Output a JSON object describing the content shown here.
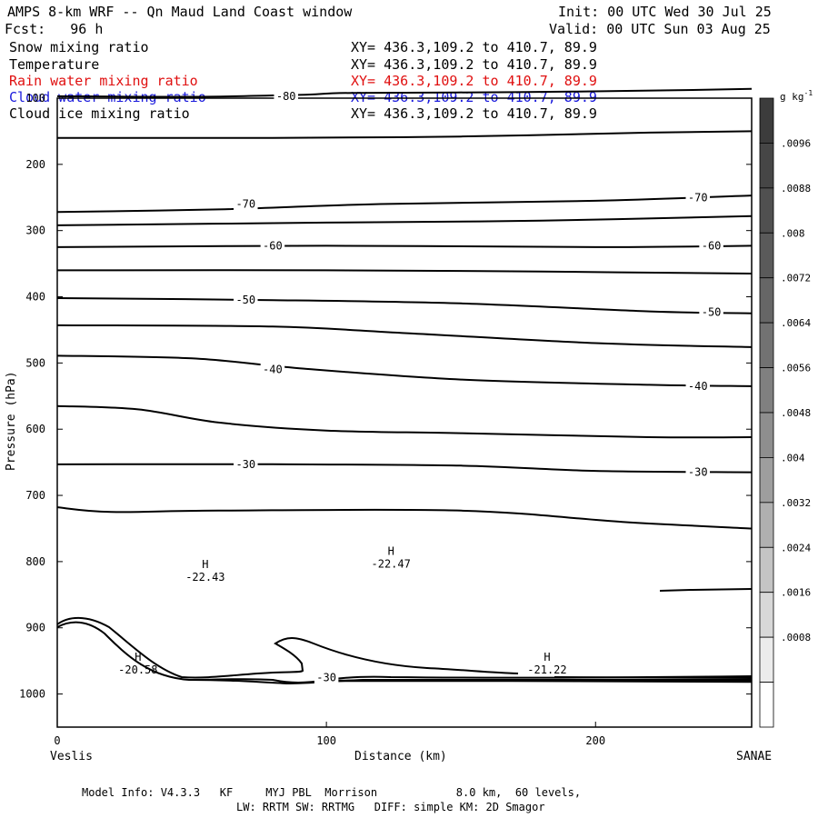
{
  "header": {
    "title": "AMPS 8-km WRF -- Qn Maud Land Coast window",
    "init": "Init: 00 UTC Wed 30 Jul 25",
    "fcst": "Fcst:   96 h",
    "valid": "Valid: 00 UTC Sun 03 Aug 25"
  },
  "legend": [
    {
      "name": "Snow mixing ratio",
      "xy": "XY= 436.3,109.2 to 410.7, 89.9",
      "color": "#000000"
    },
    {
      "name": "Temperature",
      "xy": "XY= 436.3,109.2 to 410.7, 89.9",
      "color": "#000000"
    },
    {
      "name": "Rain water mixing ratio",
      "xy": "XY= 436.3,109.2 to 410.7, 89.9",
      "color": "#e01010"
    },
    {
      "name": "Cloud water mixing ratio",
      "xy": "XY= 436.3,109.2 to 410.7, 89.9",
      "color": "#1a1adc"
    },
    {
      "name": "Cloud ice mixing ratio",
      "xy": "XY= 436.3,109.2 to 410.7, 89.9",
      "color": "#000000"
    }
  ],
  "footer": {
    "line1": "Model Info: V4.3.3   KF     MYJ PBL  Morrison            8.0 km,  60 levels,",
    "line2": "LW: RRTM SW: RRTMG   DIFF: simple KM: 2D Smagor"
  },
  "chart_data": {
    "type": "line",
    "xlabel": "Distance (km)",
    "ylabel": "Pressure (hPa)",
    "xlim": [
      0,
      258
    ],
    "ylim": [
      1050,
      100
    ],
    "x_ticks": [
      0,
      100,
      200
    ],
    "y_ticks": [
      200,
      300,
      400,
      500,
      600,
      700,
      800,
      900,
      1000
    ],
    "y_tick_top": "100",
    "x_end_labels": {
      "left": "Veslis",
      "right": "SANAE"
    },
    "colorbar": {
      "unit": "g kg",
      "unit_sup": "-1",
      "ticks": [
        ".0096",
        ".0088",
        ".008",
        ".0072",
        ".0064",
        ".0056",
        ".0048",
        ".004",
        ".0032",
        ".0024",
        ".0016",
        ".0008"
      ],
      "colors": [
        "#3c3c3c",
        "#464646",
        "#505050",
        "#5a5a5a",
        "#666666",
        "#727272",
        "#808080",
        "#8e8e8e",
        "#9e9e9e",
        "#b0b0b0",
        "#c4c4c4",
        "#d8d8d8",
        "#ececec",
        "#ffffff"
      ]
    },
    "isotherms": [
      {
        "points": [
          [
            0,
            97
          ],
          [
            50,
            98
          ],
          [
            90,
            95
          ],
          [
            110,
            92
          ],
          [
            170,
            91
          ],
          [
            230,
            88
          ],
          [
            258,
            86
          ]
        ]
      },
      {
        "points": [
          [
            0,
            160
          ],
          [
            80,
            160
          ],
          [
            150,
            158
          ],
          [
            220,
            152
          ],
          [
            258,
            150
          ]
        ]
      },
      {
        "points": [
          [
            0,
            272
          ],
          [
            60,
            268
          ],
          [
            120,
            260
          ],
          [
            200,
            255
          ],
          [
            258,
            247
          ]
        ]
      },
      {
        "points": [
          [
            0,
            292
          ],
          [
            100,
            288
          ],
          [
            180,
            285
          ],
          [
            258,
            278
          ]
        ]
      },
      {
        "points": [
          [
            0,
            325
          ],
          [
            100,
            323
          ],
          [
            200,
            325
          ],
          [
            258,
            323
          ]
        ]
      },
      {
        "points": [
          [
            0,
            360
          ],
          [
            100,
            360
          ],
          [
            180,
            362
          ],
          [
            258,
            365
          ]
        ]
      },
      {
        "points": [
          [
            0,
            402
          ],
          [
            80,
            405
          ],
          [
            150,
            410
          ],
          [
            220,
            422
          ],
          [
            258,
            425
          ]
        ]
      },
      {
        "points": [
          [
            0,
            443
          ],
          [
            80,
            445
          ],
          [
            130,
            455
          ],
          [
            200,
            470
          ],
          [
            258,
            476
          ]
        ]
      },
      {
        "points": [
          [
            0,
            489
          ],
          [
            50,
            493
          ],
          [
            90,
            508
          ],
          [
            150,
            525
          ],
          [
            220,
            533
          ],
          [
            258,
            535
          ]
        ]
      },
      {
        "points": [
          [
            0,
            565
          ],
          [
            30,
            570
          ],
          [
            60,
            590
          ],
          [
            100,
            602
          ],
          [
            150,
            606
          ],
          [
            220,
            612
          ],
          [
            258,
            612
          ]
        ]
      },
      {
        "points": [
          [
            0,
            653
          ],
          [
            80,
            653
          ],
          [
            150,
            655
          ],
          [
            200,
            663
          ],
          [
            258,
            665
          ]
        ]
      },
      {
        "points": [
          [
            0,
            718
          ],
          [
            20,
            725
          ],
          [
            60,
            723
          ],
          [
            150,
            723
          ],
          [
            210,
            740
          ],
          [
            258,
            750
          ]
        ]
      }
    ],
    "contour_labels": [
      {
        "text": "-80",
        "x": 85,
        "p": 97
      },
      {
        "text": "-70",
        "x": 70,
        "p": 260
      },
      {
        "text": "-70",
        "x": 238,
        "p": 250
      },
      {
        "text": "-60",
        "x": 80,
        "p": 323
      },
      {
        "text": "-60",
        "x": 243,
        "p": 323
      },
      {
        "text": "-50",
        "x": 70,
        "p": 405
      },
      {
        "text": "-50",
        "x": 243,
        "p": 423
      },
      {
        "text": "-40",
        "x": 80,
        "p": 510
      },
      {
        "text": "-40",
        "x": 238,
        "p": 535
      },
      {
        "text": "-30",
        "x": 70,
        "p": 653
      },
      {
        "text": "-30",
        "x": 238,
        "p": 665
      },
      {
        "text": "-30",
        "x": 100,
        "p": 975
      }
    ],
    "extrema": [
      {
        "symbol": "H",
        "value": "-22.43",
        "x": 55,
        "p": 810
      },
      {
        "symbol": "H",
        "value": "-22.47",
        "x": 124,
        "p": 790
      },
      {
        "symbol": "H",
        "value": "-20.58",
        "x": 30,
        "p": 950
      },
      {
        "symbol": "H",
        "value": "-21.22",
        "x": 182,
        "p": 950
      }
    ]
  }
}
